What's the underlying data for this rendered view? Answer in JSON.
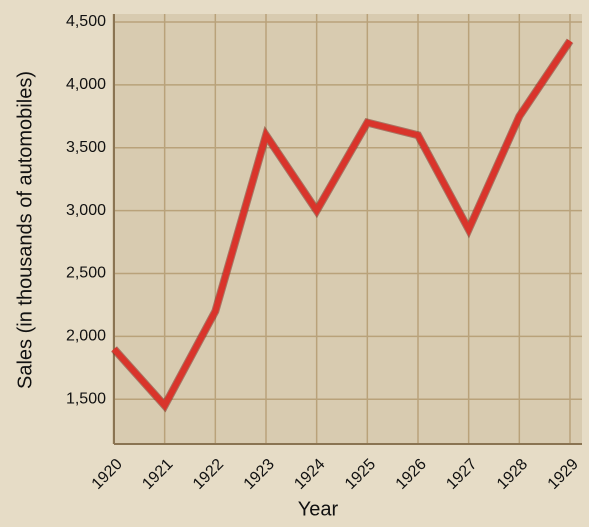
{
  "chart_data": {
    "type": "line",
    "x_label": "Year",
    "y_label": "Sales (in thousands of automobiles)",
    "categories": [
      "1920",
      "1921",
      "1922",
      "1923",
      "1924",
      "1925",
      "1926",
      "1927",
      "1928",
      "1929"
    ],
    "values": [
      1900,
      1450,
      2200,
      3600,
      3000,
      3700,
      3600,
      2850,
      3750,
      4350
    ],
    "color": "#d9342b",
    "ylim": [
      1200,
      4500
    ],
    "yticks": [
      {
        "value": 1500,
        "label": "1,500"
      },
      {
        "value": 2000,
        "label": "2,000"
      },
      {
        "value": 2500,
        "label": "2,500"
      },
      {
        "value": 3000,
        "label": "3,000"
      },
      {
        "value": 3500,
        "label": "3,500"
      },
      {
        "value": 4000,
        "label": "4,000"
      },
      {
        "value": 4500,
        "label": "4,500"
      }
    ],
    "grid": true
  }
}
